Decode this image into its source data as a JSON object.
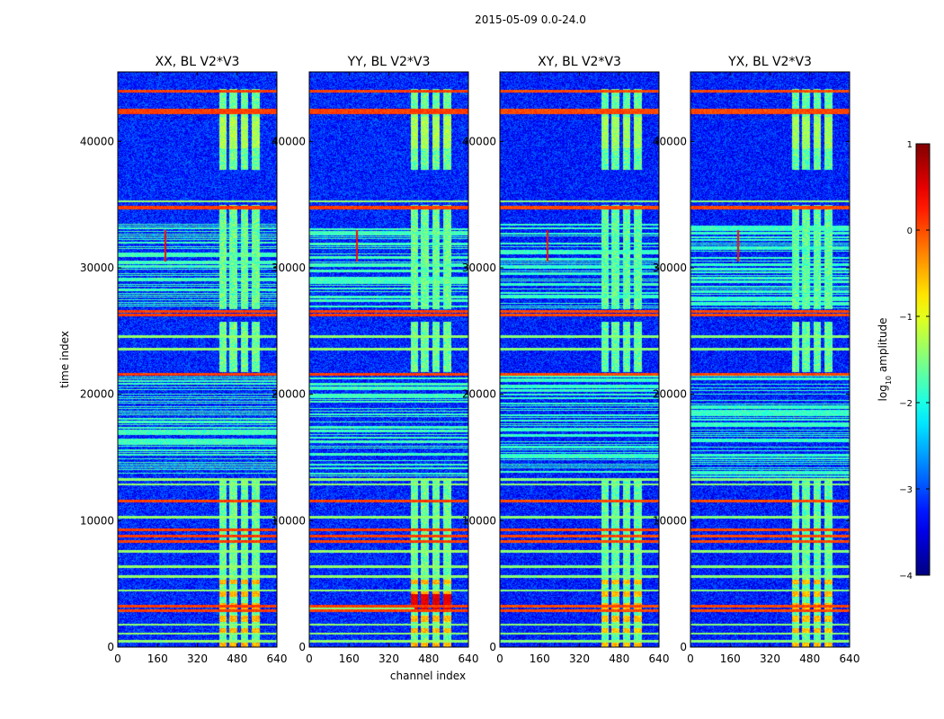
{
  "chart_data": {
    "type": "heatmap",
    "title": "2015-05-09 0.0-24.0",
    "xlabel": "channel index",
    "ylabel": "time index",
    "xlim": [
      0,
      640
    ],
    "ylim": [
      0,
      45500
    ],
    "xticks": [
      "0",
      "160",
      "320",
      "480",
      "640"
    ],
    "yticks": [
      "0",
      "10000",
      "20000",
      "30000",
      "40000"
    ],
    "panels": [
      {
        "title": "XX, BL V2*V3",
        "variant": "XX"
      },
      {
        "title": "YY, BL V2*V3",
        "variant": "YY"
      },
      {
        "title": "XY, BL V2*V3",
        "variant": "XY"
      },
      {
        "title": "YX, BL V2*V3",
        "variant": "YX"
      }
    ],
    "colorbar": {
      "label": "log10 amplitude",
      "label_main": "log",
      "label_sub": "10",
      "label_rest": " amplitude",
      "range": [
        -4,
        1
      ],
      "ticks": [
        "1",
        "0",
        "−1",
        "−2",
        "−3",
        "−4"
      ],
      "colormap": "jet"
    },
    "features": {
      "baseline_log_amplitude": -3.2,
      "strong_rfi_rows_time_index": [
        2900,
        3250,
        8400,
        8800,
        9300,
        11600,
        21600,
        26300,
        26600,
        34800,
        42300,
        42500,
        44000
      ],
      "weak_rfi_rows_time_index": [
        500,
        1100,
        1800,
        4500,
        5600,
        6400,
        7600,
        10300,
        12900,
        13300,
        23600,
        24600,
        35300
      ],
      "band_rfi_channels": [
        [
          405,
          435
        ],
        [
          448,
          480
        ],
        [
          492,
          522
        ],
        [
          538,
          570
        ]
      ],
      "narrowband_spike_channel": 190,
      "narrowband_spike_time_range": [
        30500,
        33000
      ],
      "dense_rfi_time_range": [
        13500,
        21500
      ],
      "dense_rfi_time_range_2": [
        26800,
        33500
      ]
    }
  }
}
